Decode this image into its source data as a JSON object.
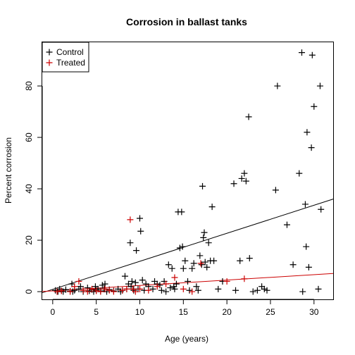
{
  "chart_data": {
    "type": "scatter",
    "title": "Corrosion in ballast tanks",
    "xlabel": "Age (years)",
    "ylabel": "Percent corrosion",
    "xlim": [
      -1.2,
      32.2
    ],
    "ylim": [
      -3,
      97
    ],
    "x_ticks": [
      0,
      5,
      10,
      15,
      20,
      25,
      30
    ],
    "y_ticks": [
      0,
      20,
      40,
      60,
      80
    ],
    "legend_position": "top-left",
    "series": [
      {
        "name": "Control",
        "color": "#000000",
        "marker": "plus",
        "points": [
          [
            0.3,
            0.5
          ],
          [
            0.6,
            0
          ],
          [
            0.8,
            1
          ],
          [
            1.0,
            0.3
          ],
          [
            1.2,
            0
          ],
          [
            1.5,
            0.8
          ],
          [
            2.0,
            0.2
          ],
          [
            2.2,
            3
          ],
          [
            2.3,
            0
          ],
          [
            2.5,
            0.5
          ],
          [
            3.0,
            1
          ],
          [
            3.2,
            2
          ],
          [
            3.5,
            0
          ],
          [
            4.0,
            1.5
          ],
          [
            4.2,
            0.3
          ],
          [
            4.5,
            0.8
          ],
          [
            4.7,
            0
          ],
          [
            4.9,
            2
          ],
          [
            5.0,
            0.5
          ],
          [
            5.2,
            1
          ],
          [
            5.5,
            0.3
          ],
          [
            5.7,
            2.5
          ],
          [
            5.9,
            1
          ],
          [
            6.0,
            3
          ],
          [
            6.2,
            0
          ],
          [
            6.5,
            0.8
          ],
          [
            7.0,
            0.3
          ],
          [
            7.5,
            1
          ],
          [
            7.8,
            0
          ],
          [
            8.0,
            0.5
          ],
          [
            8.3,
            6
          ],
          [
            8.5,
            1
          ],
          [
            8.7,
            3
          ],
          [
            8.9,
            19
          ],
          [
            9.0,
            2
          ],
          [
            9.1,
            4
          ],
          [
            9.3,
            0.5
          ],
          [
            9.5,
            3.5
          ],
          [
            9.6,
            16
          ],
          [
            9.8,
            1
          ],
          [
            10.0,
            28.5
          ],
          [
            10.1,
            23.5
          ],
          [
            10.3,
            4.5
          ],
          [
            10.5,
            0.5
          ],
          [
            10.7,
            3
          ],
          [
            11.0,
            2
          ],
          [
            11.5,
            1
          ],
          [
            11.7,
            4
          ],
          [
            12.0,
            3
          ],
          [
            12.3,
            2.5
          ],
          [
            12.5,
            0.5
          ],
          [
            12.8,
            4
          ],
          [
            13.0,
            0
          ],
          [
            13.3,
            10.5
          ],
          [
            13.5,
            1.5
          ],
          [
            13.7,
            9
          ],
          [
            13.9,
            2
          ],
          [
            14.0,
            1
          ],
          [
            14.2,
            3
          ],
          [
            14.4,
            31
          ],
          [
            14.6,
            17
          ],
          [
            14.8,
            31
          ],
          [
            14.9,
            17.5
          ],
          [
            15.0,
            9
          ],
          [
            15.2,
            12
          ],
          [
            15.5,
            4
          ],
          [
            15.7,
            0.5
          ],
          [
            16.0,
            9
          ],
          [
            16.2,
            11
          ],
          [
            16.5,
            2
          ],
          [
            16.7,
            0.5
          ],
          [
            16.9,
            14
          ],
          [
            17.1,
            10.5
          ],
          [
            17.2,
            41
          ],
          [
            17.3,
            21
          ],
          [
            17.4,
            23
          ],
          [
            17.5,
            11.5
          ],
          [
            17.7,
            9.5
          ],
          [
            17.9,
            19
          ],
          [
            18.1,
            12
          ],
          [
            18.3,
            33
          ],
          [
            18.5,
            12
          ],
          [
            19.0,
            1
          ],
          [
            19.5,
            4
          ],
          [
            20.8,
            42
          ],
          [
            21.0,
            0.5
          ],
          [
            21.5,
            12
          ],
          [
            21.7,
            44
          ],
          [
            22.0,
            46
          ],
          [
            22.2,
            43
          ],
          [
            22.5,
            68
          ],
          [
            22.6,
            13
          ],
          [
            23.0,
            0
          ],
          [
            23.5,
            0.5
          ],
          [
            24.0,
            2
          ],
          [
            24.3,
            1
          ],
          [
            24.6,
            0.5
          ],
          [
            25.6,
            39.5
          ],
          [
            25.8,
            80
          ],
          [
            26.9,
            26
          ],
          [
            27.6,
            10.5
          ],
          [
            28.3,
            46
          ],
          [
            28.6,
            93
          ],
          [
            28.7,
            0
          ],
          [
            29.0,
            34
          ],
          [
            29.1,
            17.5
          ],
          [
            29.2,
            62
          ],
          [
            29.4,
            9.5
          ],
          [
            29.7,
            56
          ],
          [
            29.8,
            92
          ],
          [
            30.0,
            72
          ],
          [
            30.5,
            1
          ],
          [
            30.7,
            80
          ],
          [
            30.8,
            32
          ]
        ]
      },
      {
        "name": "Treated",
        "color": "#cc0000",
        "marker": "plus",
        "points": [
          [
            0.5,
            0
          ],
          [
            1.0,
            0.3
          ],
          [
            2.0,
            0
          ],
          [
            2.5,
            2
          ],
          [
            3.0,
            4
          ],
          [
            3.5,
            0.5
          ],
          [
            4.0,
            0
          ],
          [
            4.5,
            1
          ],
          [
            5.0,
            0.3
          ],
          [
            5.5,
            0
          ],
          [
            6.0,
            1
          ],
          [
            6.5,
            0.5
          ],
          [
            7.0,
            0
          ],
          [
            8.0,
            0.5
          ],
          [
            8.5,
            1
          ],
          [
            8.9,
            28
          ],
          [
            9.2,
            1
          ],
          [
            9.5,
            0
          ],
          [
            10.0,
            1
          ],
          [
            11.0,
            0.5
          ],
          [
            12.0,
            2
          ],
          [
            13.0,
            3
          ],
          [
            14.0,
            5.5
          ],
          [
            15.0,
            1
          ],
          [
            16.0,
            0
          ],
          [
            17.0,
            11
          ],
          [
            20.0,
            4
          ],
          [
            22.0,
            5
          ]
        ]
      }
    ],
    "fit_lines": [
      {
        "name": "Control",
        "color": "#000000",
        "intercept": 0.9,
        "slope": 1.09
      },
      {
        "name": "Treated",
        "color": "#cc0000",
        "intercept": 0.3,
        "slope": 0.21
      }
    ]
  }
}
